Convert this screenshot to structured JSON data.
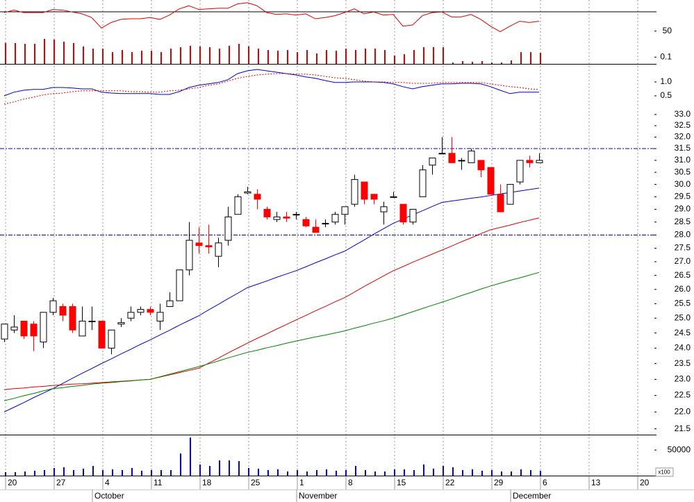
{
  "chart_data": {
    "type": "candlestick",
    "categories": [
      "20",
      null,
      null,
      null,
      null,
      "27",
      null,
      null,
      null,
      null,
      "4",
      null,
      null,
      null,
      null,
      "11",
      null,
      null,
      null,
      null,
      "18",
      null,
      null,
      null,
      null,
      "25",
      null,
      null,
      null,
      null,
      "1",
      null,
      null,
      null,
      null,
      "8",
      null,
      null,
      null,
      null,
      "15",
      null,
      null,
      null,
      null,
      "22",
      null,
      null,
      null,
      null,
      "29",
      null,
      null,
      null,
      null,
      "6",
      null,
      null,
      null,
      null,
      "13",
      null,
      null,
      null,
      null,
      "20"
    ],
    "months": [
      null,
      null,
      null,
      null,
      null,
      null,
      null,
      null,
      null,
      "October",
      null,
      null,
      null,
      null,
      null,
      null,
      null,
      null,
      null,
      null,
      null,
      null,
      null,
      null,
      null,
      null,
      null,
      null,
      null,
      null,
      "November",
      null,
      null,
      null,
      null,
      null,
      null,
      null,
      null,
      null,
      null,
      null,
      null,
      null,
      null,
      null,
      null,
      null,
      null,
      null,
      null,
      null,
      "December",
      null,
      null,
      null,
      null,
      null,
      null,
      null,
      null,
      null,
      null,
      null,
      null,
      null
    ],
    "log_scale": true,
    "ylim": [
      21.33,
      33.31
    ],
    "yticks": [
      {
        "value": 33,
        "label": "33.0"
      },
      32.5,
      {
        "value": 32,
        "label": "32.0"
      },
      31.5,
      {
        "value": 31,
        "label": "31.0"
      },
      30.5,
      {
        "value": 30,
        "label": "30.0"
      },
      29.5,
      {
        "value": 29,
        "label": "29.0"
      },
      28.5,
      {
        "value": 28,
        "label": "28.0"
      },
      27.5,
      {
        "value": 27,
        "label": "27.0"
      },
      26.5,
      {
        "value": 26,
        "label": "26.0"
      },
      25.5,
      {
        "value": 25,
        "label": "25.0"
      },
      24.5,
      {
        "value": 24,
        "label": "24.0"
      },
      23.5,
      {
        "value": 23,
        "label": "23.0"
      },
      22.5,
      {
        "value": 22,
        "label": "22.0"
      },
      21.5
    ],
    "up_color": "#ffffff",
    "down_color": "#ff0000",
    "open": [
      24.3,
      24.6,
      24.9,
      24.8,
      24.2,
      25.2,
      25.4,
      25.4,
      24.4,
      24.9,
      24.9,
      24.0,
      24.8,
      25.0,
      25.2,
      25.3,
      24.9,
      25.4,
      25.6,
      26.7,
      27.7,
      27.6,
      27.2,
      27.8,
      28.8,
      29.65,
      29.6,
      29.0,
      28.6,
      28.7,
      28.8,
      28.6,
      28.3,
      28.45,
      28.5,
      28.8,
      29.2,
      30.1,
      29.6,
      28.9,
      29.5,
      29.2,
      28.5,
      29.5,
      30.8,
      31.3,
      31.3,
      31.0,
      30.9,
      31.0,
      30.7,
      29.6,
      29.2,
      30.1,
      31.0,
      30.9,
      null,
      null,
      null,
      null,
      null,
      null,
      null,
      null,
      null,
      null
    ],
    "high": [
      24.8,
      25.1,
      24.9,
      24.9,
      25.2,
      25.7,
      25.5,
      25.5,
      25.4,
      25.4,
      24.9,
      24.6,
      25.0,
      25.4,
      25.4,
      25.4,
      25.5,
      25.9,
      26.7,
      28.5,
      28.3,
      28.4,
      27.9,
      29.1,
      29.6,
      29.9,
      29.8,
      29.1,
      28.9,
      28.9,
      28.9,
      28.7,
      28.6,
      28.6,
      28.9,
      29.1,
      30.4,
      30.1,
      29.6,
      29.3,
      29.7,
      29.2,
      29.0,
      30.8,
      31.1,
      32.0,
      32.0,
      31.1,
      31.5,
      31.0,
      30.7,
      30.0,
      30.0,
      31.0,
      31.2,
      31.3,
      null,
      null,
      null,
      null,
      null,
      null,
      null,
      null,
      null,
      null
    ],
    "low": [
      24.2,
      24.5,
      24.3,
      23.9,
      24.0,
      25.1,
      24.9,
      24.5,
      24.4,
      24.6,
      24.0,
      23.8,
      24.7,
      24.9,
      25.1,
      25.1,
      24.6,
      25.4,
      25.6,
      26.5,
      27.3,
      27.3,
      26.8,
      27.6,
      28.8,
      29.6,
      29.0,
      28.6,
      28.5,
      28.5,
      28.6,
      28.3,
      28.1,
      28.3,
      28.4,
      28.4,
      29.1,
      29.2,
      29.2,
      28.4,
      29.5,
      28.4,
      28.4,
      29.5,
      30.4,
      31.3,
      30.9,
      30.6,
      30.9,
      30.3,
      29.6,
      28.9,
      29.2,
      30.0,
      30.7,
      30.9,
      null,
      null,
      null,
      null,
      null,
      null,
      null,
      null,
      null,
      null
    ],
    "close": [
      24.8,
      24.7,
      24.4,
      24.4,
      25.2,
      25.6,
      25.1,
      24.6,
      24.9,
      24.9,
      24.0,
      24.6,
      24.85,
      25.2,
      25.3,
      25.2,
      25.2,
      25.6,
      26.7,
      27.8,
      27.6,
      27.55,
      27.7,
      28.7,
      29.5,
      29.7,
      29.4,
      28.7,
      28.7,
      28.65,
      28.8,
      28.35,
      28.1,
      28.45,
      28.8,
      29.1,
      30.2,
      29.4,
      29.4,
      29.1,
      29.5,
      28.5,
      29.0,
      30.6,
      31.1,
      31.3,
      30.9,
      31.0,
      31.4,
      30.6,
      29.6,
      28.9,
      30.0,
      31.0,
      30.9,
      31.0,
      null,
      null,
      null,
      null,
      null,
      null,
      null,
      null,
      null,
      null
    ],
    "series": [
      {
        "color": "#0000c8",
        "values": [
          22.0,
          22.14,
          22.28,
          22.43,
          22.57,
          22.71,
          22.87,
          23.03,
          23.19,
          23.34,
          23.5,
          23.65,
          23.81,
          23.96,
          24.12,
          24.27,
          24.43,
          24.59,
          24.76,
          24.92,
          25.08,
          25.28,
          25.47,
          25.67,
          25.86,
          26.06,
          26.18,
          26.3,
          26.43,
          26.55,
          26.67,
          26.81,
          26.96,
          27.1,
          27.25,
          27.39,
          27.6,
          27.81,
          28.03,
          28.24,
          28.45,
          28.61,
          28.78,
          28.94,
          29.11,
          29.27,
          29.33,
          29.38,
          29.44,
          29.49,
          29.55,
          29.61,
          29.67,
          29.73,
          29.79,
          29.85,
          null,
          null,
          null,
          null,
          null,
          null,
          null,
          null,
          null,
          null
        ]
      },
      {
        "color": "#dd0000",
        "values": [
          22.68,
          22.71,
          22.73,
          22.76,
          22.78,
          22.81,
          22.83,
          22.85,
          22.86,
          22.88,
          22.9,
          22.92,
          22.94,
          22.96,
          22.98,
          23.0,
          23.07,
          23.14,
          23.21,
          23.28,
          23.35,
          23.51,
          23.67,
          23.84,
          24.0,
          24.16,
          24.32,
          24.47,
          24.63,
          24.78,
          24.94,
          25.09,
          25.25,
          25.4,
          25.56,
          25.71,
          25.9,
          26.1,
          26.29,
          26.48,
          26.67,
          26.82,
          26.98,
          27.13,
          27.28,
          27.43,
          27.58,
          27.74,
          27.89,
          28.05,
          28.2,
          28.29,
          28.38,
          28.48,
          28.57,
          28.66,
          null,
          null,
          null,
          null,
          null,
          null,
          null,
          null,
          null,
          null
        ]
      },
      {
        "color": "#008000",
        "values": [
          22.34,
          22.41,
          22.49,
          22.56,
          22.64,
          22.71,
          22.74,
          22.78,
          22.81,
          22.85,
          22.88,
          22.9,
          22.93,
          22.95,
          22.98,
          23.0,
          23.08,
          23.16,
          23.24,
          23.32,
          23.4,
          23.49,
          23.58,
          23.68,
          23.77,
          23.86,
          23.93,
          24.01,
          24.08,
          24.16,
          24.23,
          24.3,
          24.37,
          24.43,
          24.5,
          24.57,
          24.66,
          24.74,
          24.83,
          24.91,
          25.0,
          25.11,
          25.22,
          25.33,
          25.44,
          25.55,
          25.66,
          25.78,
          25.89,
          26.01,
          26.12,
          26.22,
          26.32,
          26.41,
          26.51,
          26.61,
          null,
          null,
          null,
          null,
          null,
          null,
          null,
          null,
          null,
          null
        ]
      }
    ],
    "levels": [
      31.5,
      28.0
    ],
    "level_color": "#0000c8",
    "oscillator": {
      "type": "line",
      "ylim": [
        0.05,
        1.6
      ],
      "yticks": [
        {
          "value": 1,
          "label": "1.0"
        },
        0.5
      ],
      "series": [
        {
          "color": "#0000c8",
          "dashed": false,
          "values": [
            0.5,
            0.63,
            0.7,
            0.73,
            0.73,
            0.8,
            0.8,
            0.78,
            0.75,
            0.75,
            0.63,
            0.6,
            0.58,
            0.58,
            0.58,
            0.58,
            0.55,
            0.55,
            0.65,
            0.8,
            0.88,
            0.93,
            0.98,
            1.08,
            1.3,
            1.4,
            1.45,
            1.4,
            1.35,
            1.3,
            1.25,
            1.18,
            1.13,
            1.05,
            0.98,
            0.98,
            1.0,
            1.0,
            1.0,
            0.98,
            0.93,
            0.83,
            0.75,
            0.83,
            0.88,
            0.93,
            0.93,
            0.95,
            0.95,
            0.93,
            0.83,
            0.7,
            0.58,
            0.63,
            0.63,
            0.63,
            null,
            null,
            null,
            null,
            null,
            null,
            null,
            null,
            null,
            null
          ]
        },
        {
          "color": "#dd0000",
          "dashed": true,
          "values": [
            0.2,
            0.28,
            0.38,
            0.45,
            0.53,
            0.58,
            0.6,
            0.65,
            0.68,
            0.68,
            0.68,
            0.68,
            0.68,
            0.65,
            0.65,
            0.63,
            0.63,
            0.68,
            0.7,
            0.75,
            0.8,
            0.88,
            0.93,
            1.03,
            1.13,
            1.2,
            1.25,
            1.28,
            1.3,
            1.3,
            1.28,
            1.28,
            1.25,
            1.2,
            1.15,
            1.13,
            1.08,
            1.03,
            1.0,
            1.0,
            0.98,
            0.98,
            0.95,
            0.95,
            0.95,
            0.98,
            0.98,
            0.98,
            0.98,
            0.98,
            0.93,
            0.88,
            0.83,
            0.8,
            0.75,
            0.73,
            null,
            null,
            null,
            null,
            null,
            null,
            null,
            null,
            null,
            null
          ]
        }
      ]
    },
    "top": {
      "type": "bar",
      "log_scale": true,
      "ylim": [
        0.02,
        50000
      ],
      "yticks": [
        50,
        0.1
      ],
      "color": "#dd0000",
      "values": [
        2.9,
        2.9,
        2.4,
        2.4,
        7.7,
        6.6,
        4.0,
        2.9,
        1.3,
        0.76,
        0.76,
        0.33,
        0.55,
        0.33,
        0.46,
        0.46,
        0.33,
        0.76,
        1.06,
        1.5,
        1.3,
        1.06,
        0.76,
        1.5,
        2.4,
        1.3,
        0.76,
        0.55,
        0.46,
        0.55,
        0.33,
        0.55,
        0.24,
        0.55,
        0.46,
        0.76,
        0.55,
        0.76,
        0.76,
        0.55,
        0.15,
        0.2,
        0.55,
        1.06,
        1.06,
        1.06,
        0.028,
        0.039,
        0.033,
        0.039,
        0.028,
        0.028,
        0.046,
        0.33,
        0.33,
        0.28,
        null,
        null,
        null,
        null,
        null,
        null,
        null,
        null,
        null,
        null
      ],
      "line": {
        "color": "#dd0000",
        "ylim": [
          0,
          100
        ],
        "values": [
          83,
          87,
          83,
          83,
          83,
          88,
          87,
          84,
          81,
          75,
          58,
          67,
          72,
          73,
          73,
          75,
          72,
          79,
          89,
          94,
          88,
          89,
          90,
          90,
          97,
          99,
          94,
          83,
          80,
          81,
          79,
          81,
          73,
          75,
          78,
          83,
          89,
          81,
          84,
          79,
          80,
          61,
          63,
          78,
          83,
          84,
          76,
          76,
          80,
          72,
          61,
          52,
          61,
          69,
          67,
          69,
          null,
          null,
          null,
          null,
          null,
          null,
          null,
          null,
          null,
          null
        ]
      }
    },
    "volume": {
      "type": "bar",
      "ylim": [
        0,
        80000
      ],
      "yticks": [
        50000
      ],
      "unit_label": "x100",
      "color": "#0000ff",
      "values": [
        6800,
        6800,
        8100,
        9500,
        10800,
        14900,
        16200,
        10800,
        13500,
        18900,
        10800,
        12200,
        10800,
        14900,
        9500,
        10800,
        10800,
        10800,
        43200,
        74300,
        21600,
        18900,
        29700,
        29700,
        28400,
        14900,
        13500,
        10800,
        12200,
        8100,
        10800,
        8100,
        10800,
        12200,
        9500,
        10800,
        18900,
        10800,
        8100,
        8100,
        12200,
        12200,
        10800,
        21600,
        13500,
        18900,
        16200,
        10800,
        12200,
        9500,
        10800,
        8100,
        8100,
        12200,
        10800,
        9500,
        null,
        null,
        null,
        null,
        null,
        null,
        null,
        null,
        null,
        null
      ]
    }
  }
}
